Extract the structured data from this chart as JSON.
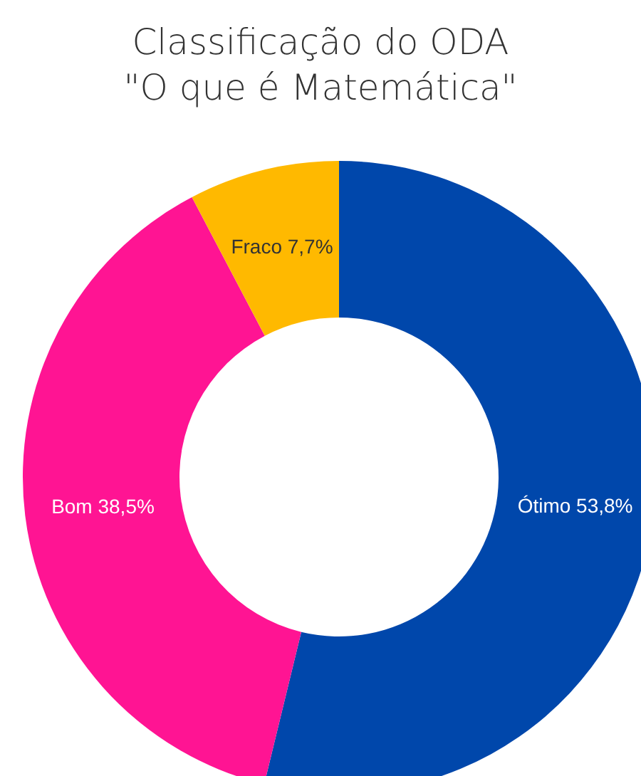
{
  "chart_data": {
    "type": "donut",
    "title": "Classificação do ODA\n\"O que é Matemática\"",
    "categories": [
      "Ótimo",
      "Bom",
      "Fraco"
    ],
    "values": [
      53.8,
      38.5,
      7.7
    ],
    "value_labels": [
      "53,8%",
      "38,5%",
      "7,7%"
    ],
    "colors": [
      "#0047ab",
      "#ff1493",
      "#ffb900"
    ],
    "legend": false
  }
}
